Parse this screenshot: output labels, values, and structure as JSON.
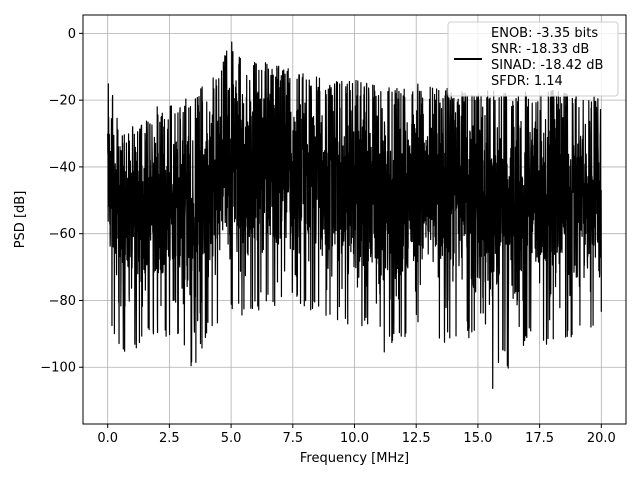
{
  "chart_data": {
    "type": "line",
    "title": "",
    "xlabel": "Frequency [MHz]",
    "ylabel": "PSD [dB]",
    "xlim": [
      -1,
      21
    ],
    "ylim": [
      -117,
      5.5
    ],
    "xticks": [
      0.0,
      2.5,
      5.0,
      7.5,
      10.0,
      12.5,
      15.0,
      17.5,
      20.0
    ],
    "xtick_labels": [
      "0.0",
      "2.5",
      "5.0",
      "7.5",
      "10.0",
      "12.5",
      "15.0",
      "17.5",
      "20.0"
    ],
    "yticks": [
      0,
      -20,
      -40,
      -60,
      -80,
      -100
    ],
    "ytick_labels": [
      "0",
      "−20",
      "−40",
      "−60",
      "−80",
      "−100"
    ],
    "grid": true,
    "legend_position": "top-right",
    "legend": [
      "ENOB: -3.35 bits",
      "SNR: -18.33 dB",
      "SINAD: -18.42 dB",
      "SFDR: 1.14"
    ],
    "series_color": "#000000",
    "series": [
      {
        "x_range": [
          0,
          20
        ],
        "shape_description_points": {
          "x": [
            0.0,
            0.5,
            1.0,
            1.5,
            2.0,
            2.5,
            3.0,
            3.5,
            4.0,
            4.5,
            5.0,
            5.5,
            6.0,
            6.5,
            7.0,
            7.5,
            8.0,
            8.5,
            9.0,
            9.5,
            10.0,
            10.5,
            11.0,
            11.5,
            12.0,
            12.5,
            13.0,
            13.5,
            14.0,
            14.5,
            15.0,
            15.5,
            16.0,
            16.5,
            17.0,
            17.5,
            18.0,
            18.5,
            19.0,
            19.5,
            20.0
          ],
          "upper": [
            -11,
            -30,
            -28,
            -27,
            -22,
            -22,
            -20,
            -18,
            -15,
            -12,
            0,
            -10,
            -8,
            -9,
            -10,
            -11,
            -12,
            -13,
            -15,
            -14,
            -14,
            -15,
            -15,
            -16,
            -16,
            -15,
            -16,
            -17,
            -16,
            -18,
            -17,
            -17,
            -18,
            -18,
            -17,
            -18,
            -17,
            -18,
            -19,
            -18,
            -20
          ],
          "lower": [
            -85,
            -95,
            -96,
            -92,
            -90,
            -92,
            -93,
            -104,
            -90,
            -88,
            -84,
            -85,
            -84,
            -82,
            -82,
            -80,
            -82,
            -85,
            -88,
            -89,
            -89,
            -88,
            -103,
            -93,
            -92,
            -88,
            -90,
            -93,
            -92,
            -92,
            -91,
            -112,
            -95,
            -108,
            -92,
            -92,
            -95,
            -92,
            -91,
            -92,
            -85
          ]
        }
      }
    ]
  }
}
